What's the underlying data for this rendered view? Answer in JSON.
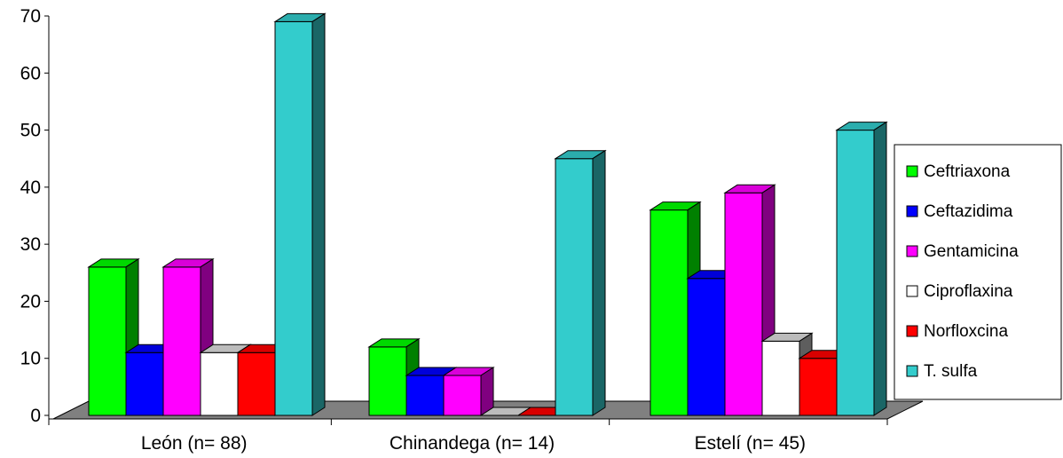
{
  "chart_data": {
    "type": "bar",
    "categories": [
      "León (n= 88)",
      "Chinandega (n= 14)",
      "Estelí (n= 45)"
    ],
    "series": [
      {
        "name": "Ceftriaxona",
        "color": "#00ff00",
        "values": [
          26,
          12,
          36
        ]
      },
      {
        "name": "Ceftazidima",
        "color": "#0000ff",
        "values": [
          11,
          7,
          24
        ]
      },
      {
        "name": "Gentamicina",
        "color": "#ff00ff",
        "values": [
          26,
          7,
          39
        ]
      },
      {
        "name": "Ciproflaxina",
        "color": "#ffffff",
        "values": [
          11,
          0,
          13
        ]
      },
      {
        "name": "Norfloxcina",
        "color": "#ff0000",
        "values": [
          11,
          0,
          10
        ]
      },
      {
        "name": "T. sulfa",
        "color": "#33cccc",
        "values": [
          69,
          45,
          50
        ]
      }
    ],
    "y_ticks": [
      "0",
      "10",
      "20",
      "30",
      "40",
      "50",
      "60",
      "70"
    ],
    "ylim": [
      0,
      70
    ],
    "floor_color": "#808080",
    "legend_position": "right"
  }
}
